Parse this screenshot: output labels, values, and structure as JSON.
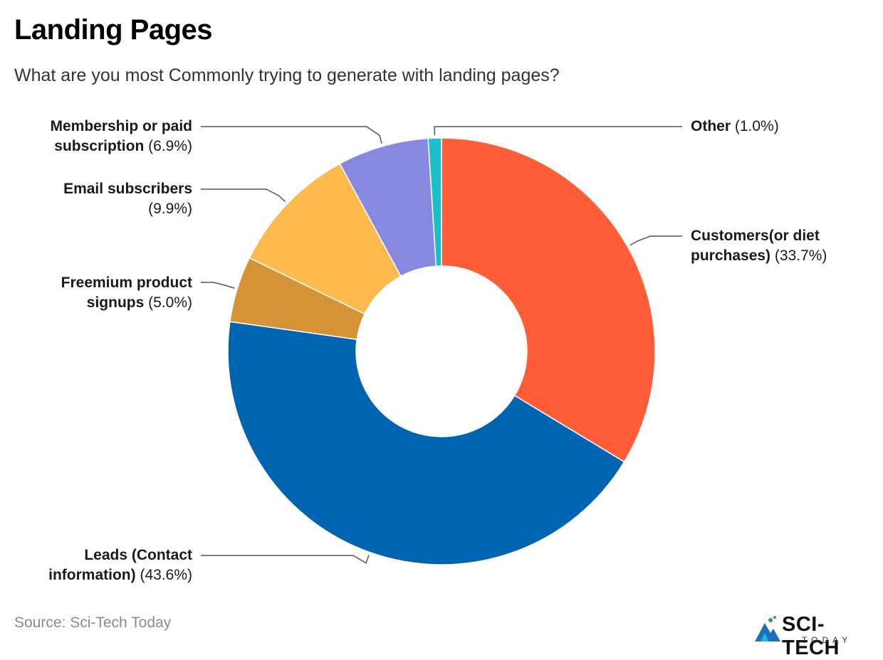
{
  "header": {
    "title": "Landing Pages",
    "subtitle": "What are you most Commonly trying to generate with landing pages?"
  },
  "chart_data": {
    "type": "pie",
    "variant": "donut",
    "title": "Landing Pages",
    "subtitle": "What are you most Commonly trying to generate with landing pages?",
    "start_angle_deg": 0,
    "direction": "clockwise",
    "slices": [
      {
        "name_line1": "Customers(or diet",
        "name_line2": "purchases)",
        "value": 33.7,
        "value_label": "(33.7%)",
        "color": "#FF5C38",
        "side": "right"
      },
      {
        "name_line1": "Leads (Contact",
        "name_line2": "information)",
        "value": 43.6,
        "value_label": "(43.6%)",
        "color": "#0065B1",
        "side": "left"
      },
      {
        "name_line1": "Freemium product",
        "name_line2": "signups",
        "value": 5.0,
        "value_label": "(5.0%)",
        "color": "#D49337",
        "side": "left"
      },
      {
        "name_line1": "Email subscribers",
        "name_line2": "",
        "value": 9.9,
        "value_label": "(9.9%)",
        "color": "#FFBA4F",
        "side": "left"
      },
      {
        "name_line1": "Membership or paid",
        "name_line2": "subscription",
        "value": 6.9,
        "value_label": "(6.9%)",
        "color": "#8789E0",
        "side": "left"
      },
      {
        "name_line1": "Other",
        "name_line2": "",
        "value": 1.0,
        "value_label": "(1.0%)",
        "color": "#19C0C7",
        "side": "right"
      }
    ]
  },
  "footer": {
    "source": "Source: Sci-Tech Today",
    "logo_main": "SCI-TECH",
    "logo_sub": "TODAY"
  }
}
